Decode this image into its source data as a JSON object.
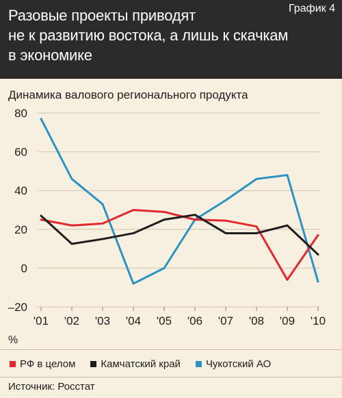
{
  "header": {
    "title": "Разовые проекты приводят\nне к развитию востока, а лишь к скачкам\nв экономике",
    "tag": "График 4"
  },
  "chart_data": {
    "type": "line",
    "title": "Динамика валового регионального продукта",
    "ylabel": "%",
    "xlabel": "",
    "ylim": [
      -20,
      80
    ],
    "yticks": [
      "80",
      "60",
      "40",
      "20",
      "0",
      "–20"
    ],
    "ytick_values": [
      80,
      60,
      40,
      20,
      0,
      -20
    ],
    "categories": [
      "'01",
      "'02",
      "'03",
      "'04",
      "'05",
      "'06",
      "'07",
      "'08",
      "'09",
      "'10"
    ],
    "grid": "horizontal",
    "legend_position": "bottom",
    "series": [
      {
        "name": "РФ в целом",
        "color": "#e3272e",
        "values": [
          25,
          22,
          23,
          30,
          29,
          25,
          24.5,
          21.5,
          -6,
          17
        ]
      },
      {
        "name": "Камчатский край",
        "color": "#1e1e1e",
        "values": [
          27,
          12.5,
          15,
          18,
          25,
          27.5,
          18,
          18,
          22,
          7
        ]
      },
      {
        "name": "Чукотский АО",
        "color": "#2a93c4",
        "values": [
          77,
          46,
          33,
          -8,
          0,
          25,
          35,
          46,
          48,
          -7
        ]
      }
    ]
  },
  "source": "Источник: Росстат"
}
